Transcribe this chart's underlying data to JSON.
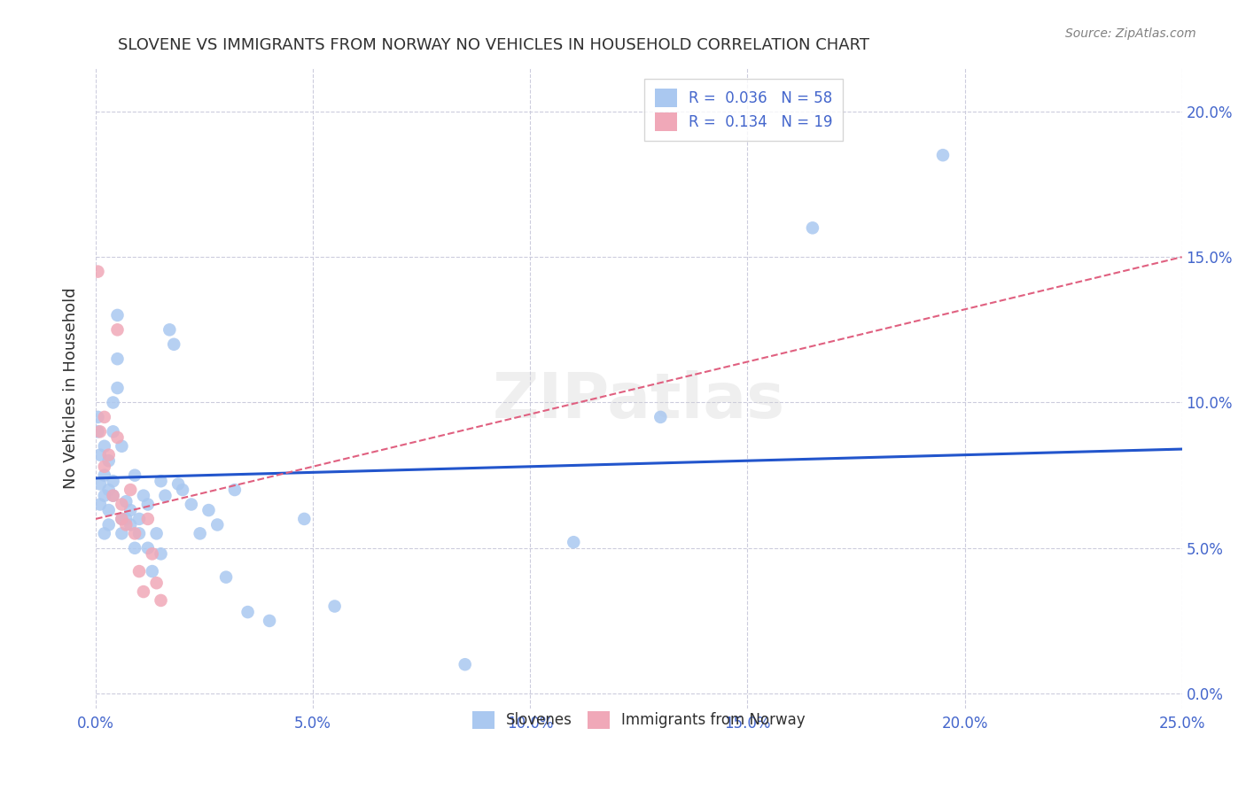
{
  "title": "SLOVENE VS IMMIGRANTS FROM NORWAY NO VEHICLES IN HOUSEHOLD CORRELATION CHART",
  "source": "Source: ZipAtlas.com",
  "ylabel": "No Vehicles in Household",
  "xlim": [
    0,
    0.25
  ],
  "ylim": [
    -0.005,
    0.215
  ],
  "scatter_color_blue": "#aac8f0",
  "scatter_color_pink": "#f0a8b8",
  "line_color_blue": "#2255cc",
  "line_color_pink": "#e06080",
  "title_color": "#303030",
  "axis_color": "#4466cc",
  "grid_color": "#ccccdd",
  "watermark": "ZIPatlas",
  "marker_size": 110,
  "line_blue_x0": 0.0,
  "line_blue_y0": 0.074,
  "line_blue_x1": 0.25,
  "line_blue_y1": 0.084,
  "line_pink_x0": 0.0,
  "line_pink_y0": 0.06,
  "line_pink_x1": 0.25,
  "line_pink_y1": 0.15,
  "slovenes_x": [
    0.0005,
    0.0005,
    0.001,
    0.001,
    0.001,
    0.002,
    0.002,
    0.002,
    0.002,
    0.003,
    0.003,
    0.003,
    0.003,
    0.004,
    0.004,
    0.004,
    0.004,
    0.005,
    0.005,
    0.005,
    0.006,
    0.006,
    0.006,
    0.007,
    0.007,
    0.008,
    0.008,
    0.009,
    0.009,
    0.01,
    0.01,
    0.011,
    0.012,
    0.012,
    0.013,
    0.014,
    0.015,
    0.015,
    0.016,
    0.017,
    0.018,
    0.019,
    0.02,
    0.022,
    0.024,
    0.026,
    0.028,
    0.03,
    0.032,
    0.035,
    0.04,
    0.048,
    0.055,
    0.085,
    0.11,
    0.13,
    0.165,
    0.195
  ],
  "slovenes_y": [
    0.09,
    0.095,
    0.072,
    0.082,
    0.065,
    0.075,
    0.068,
    0.055,
    0.085,
    0.07,
    0.08,
    0.063,
    0.058,
    0.1,
    0.09,
    0.073,
    0.068,
    0.13,
    0.115,
    0.105,
    0.085,
    0.06,
    0.055,
    0.066,
    0.06,
    0.063,
    0.058,
    0.075,
    0.05,
    0.06,
    0.055,
    0.068,
    0.065,
    0.05,
    0.042,
    0.055,
    0.073,
    0.048,
    0.068,
    0.125,
    0.12,
    0.072,
    0.07,
    0.065,
    0.055,
    0.063,
    0.058,
    0.04,
    0.07,
    0.028,
    0.025,
    0.06,
    0.03,
    0.01,
    0.052,
    0.095,
    0.16,
    0.185
  ],
  "norway_x": [
    0.0005,
    0.001,
    0.002,
    0.002,
    0.003,
    0.004,
    0.005,
    0.005,
    0.006,
    0.006,
    0.007,
    0.008,
    0.009,
    0.01,
    0.011,
    0.012,
    0.013,
    0.014,
    0.015
  ],
  "norway_y": [
    0.145,
    0.09,
    0.095,
    0.078,
    0.082,
    0.068,
    0.125,
    0.088,
    0.065,
    0.06,
    0.058,
    0.07,
    0.055,
    0.042,
    0.035,
    0.06,
    0.048,
    0.038,
    0.032
  ]
}
